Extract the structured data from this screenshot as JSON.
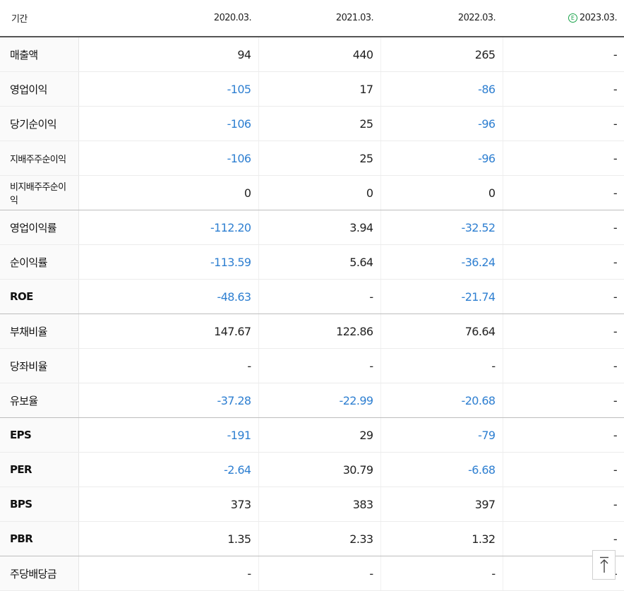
{
  "table": {
    "period_label": "기간",
    "columns": [
      {
        "label": "2020.03.",
        "estimate": false
      },
      {
        "label": "2021.03.",
        "estimate": false
      },
      {
        "label": "2022.03.",
        "estimate": false
      },
      {
        "label": "2023.03.",
        "estimate": true,
        "badge": "E"
      }
    ],
    "rows": [
      {
        "label": "매출액",
        "values": [
          "94",
          "440",
          "265",
          "-"
        ]
      },
      {
        "label": "영업이익",
        "values": [
          "-105",
          "17",
          "-86",
          "-"
        ]
      },
      {
        "label": "당기순이익",
        "values": [
          "-106",
          "25",
          "-96",
          "-"
        ]
      },
      {
        "label": "지배주주순이익",
        "small": true,
        "values": [
          "-106",
          "25",
          "-96",
          "-"
        ]
      },
      {
        "label": "비지배주주순이익",
        "small": true,
        "group_end": true,
        "values": [
          "0",
          "0",
          "0",
          "-"
        ]
      },
      {
        "label": "영업이익률",
        "values": [
          "-112.20",
          "3.94",
          "-32.52",
          "-"
        ]
      },
      {
        "label": "순이익률",
        "values": [
          "-113.59",
          "5.64",
          "-36.24",
          "-"
        ]
      },
      {
        "label": "ROE",
        "bold": true,
        "group_end": true,
        "values": [
          "-48.63",
          "-",
          "-21.74",
          "-"
        ]
      },
      {
        "label": "부채비율",
        "values": [
          "147.67",
          "122.86",
          "76.64",
          "-"
        ]
      },
      {
        "label": "당좌비율",
        "values": [
          "-",
          "-",
          "-",
          "-"
        ]
      },
      {
        "label": "유보율",
        "group_end": true,
        "values": [
          "-37.28",
          "-22.99",
          "-20.68",
          "-"
        ]
      },
      {
        "label": "EPS",
        "bold": true,
        "values": [
          "-191",
          "29",
          "-79",
          "-"
        ]
      },
      {
        "label": "PER",
        "bold": true,
        "values": [
          "-2.64",
          "30.79",
          "-6.68",
          "-"
        ]
      },
      {
        "label": "BPS",
        "bold": true,
        "values": [
          "373",
          "383",
          "397",
          "-"
        ]
      },
      {
        "label": "PBR",
        "bold": true,
        "group_end": true,
        "values": [
          "1.35",
          "2.33",
          "1.32",
          "-"
        ]
      },
      {
        "label": "주당배당금",
        "values": [
          "-",
          "-",
          "-",
          "-"
        ]
      }
    ]
  },
  "scroll_top": {
    "icon": "arrow-up-to-top-icon"
  },
  "colors": {
    "negative": "#2e7fd1",
    "estimate_badge": "#1aa34a"
  }
}
